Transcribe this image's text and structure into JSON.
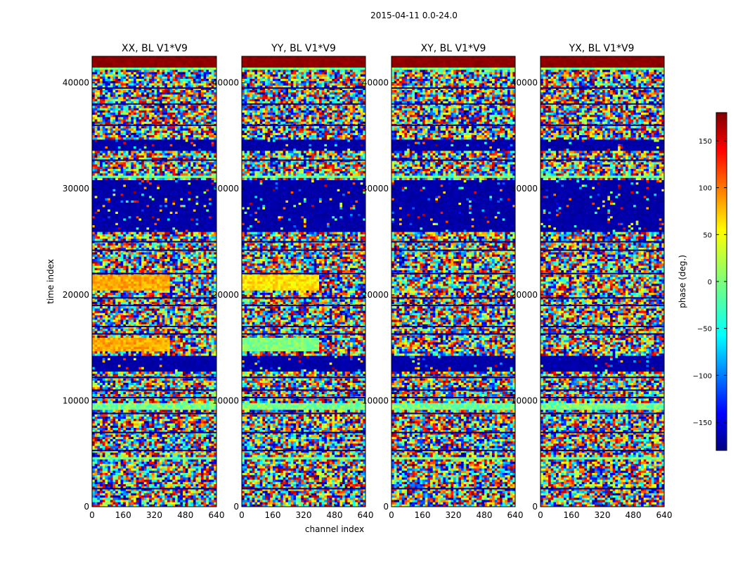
{
  "chart_data": {
    "type": "heatmap",
    "suptitle": "2015-04-11 0.0-24.0",
    "xlabel": "channel index",
    "ylabel": "time index",
    "xlim": [
      0,
      640
    ],
    "ylim": [
      0,
      42500
    ],
    "x_ticks": [
      0,
      160,
      320,
      480,
      640
    ],
    "x_tick_labels": [
      "0",
      "160",
      "320",
      "480",
      "640"
    ],
    "y_ticks": [
      0,
      10000,
      20000,
      30000,
      40000
    ],
    "y_tick_labels": [
      "0",
      "10000",
      "20000",
      "30000",
      "40000"
    ],
    "panels": [
      {
        "title": "XX, BL V1*V9"
      },
      {
        "title": "YY, BL V1*V9"
      },
      {
        "title": "XY, BL V1*V9"
      },
      {
        "title": "YX, BL V1*V9"
      }
    ],
    "colorbar": {
      "label": "phase (deg.)",
      "range": [
        -180,
        180
      ],
      "ticks": [
        150,
        100,
        50,
        0,
        -50,
        -100,
        -150
      ],
      "tick_labels": [
        "150",
        "100",
        "50",
        "0",
        "−50",
        "−100",
        "−150"
      ],
      "colormap": "jet"
    },
    "bands": [
      {
        "from": 41500,
        "to": 42500,
        "kind": "max"
      },
      {
        "from": 41300,
        "to": 41500,
        "kind": "near"
      },
      {
        "from": 34100,
        "to": 34700,
        "kind": "min"
      },
      {
        "from": 33500,
        "to": 33900,
        "kind": "min"
      },
      {
        "from": 31000,
        "to": 31300,
        "kind": "near"
      },
      {
        "from": 26000,
        "to": 30800,
        "kind": "min"
      },
      {
        "from": 20300,
        "to": 21800,
        "kind": "plateau"
      },
      {
        "from": 14600,
        "to": 16000,
        "kind": "plateau"
      },
      {
        "from": 12700,
        "to": 14300,
        "kind": "min"
      },
      {
        "from": 9100,
        "to": 9700,
        "kind": "near"
      },
      {
        "from": 4500,
        "to": 4700,
        "kind": "near"
      }
    ],
    "lines": [
      39500,
      38000,
      36000,
      32700,
      25000,
      24200,
      22000,
      19700,
      19000,
      17000,
      16300,
      12200,
      11000,
      10300,
      8800,
      7000,
      5300,
      1700
    ]
  }
}
